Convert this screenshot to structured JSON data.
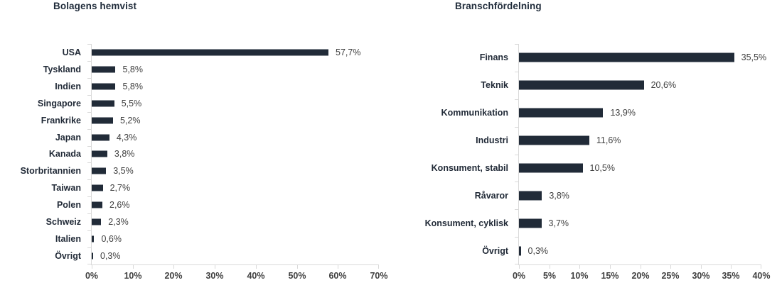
{
  "colors": {
    "bar": "#212b38",
    "title": "#1f2b3a",
    "category_label": "#222b38",
    "value_label": "#404040",
    "axis_line": "#d9d9d9",
    "tick_label": "#404040",
    "background": "#ffffff"
  },
  "chart_data": [
    {
      "type": "bar",
      "orientation": "horizontal",
      "title": "Bolagens hemvist",
      "categories": [
        "USA",
        "Tyskland",
        "Indien",
        "Singapore",
        "Frankrike",
        "Japan",
        "Kanada",
        "Storbritannien",
        "Taiwan",
        "Polen",
        "Schweiz",
        "Italien",
        "Övrigt"
      ],
      "values": [
        57.7,
        5.8,
        5.8,
        5.5,
        5.2,
        4.3,
        3.8,
        3.5,
        2.7,
        2.6,
        2.3,
        0.6,
        0.3
      ],
      "value_labels": [
        "57,7%",
        "5,8%",
        "5,8%",
        "5,5%",
        "5,2%",
        "4,3%",
        "3,8%",
        "3,5%",
        "2,7%",
        "2,6%",
        "2,3%",
        "0,6%",
        "0,3%"
      ],
      "xlim": [
        0,
        70
      ],
      "x_ticks": [
        "0%",
        "10%",
        "20%",
        "30%",
        "40%",
        "50%",
        "60%",
        "70%"
      ],
      "xlabel": "",
      "ylabel": "",
      "grid": false,
      "legend": false
    },
    {
      "type": "bar",
      "orientation": "horizontal",
      "title": "Branschfördelning",
      "categories": [
        "Finans",
        "Teknik",
        "Kommunikation",
        "Industri",
        "Konsument, stabil",
        "Råvaror",
        "Konsument, cyklisk",
        "Övrigt"
      ],
      "values": [
        35.5,
        20.6,
        13.9,
        11.6,
        10.5,
        3.8,
        3.7,
        0.3
      ],
      "value_labels": [
        "35,5%",
        "20,6%",
        "13,9%",
        "11,6%",
        "10,5%",
        "3,8%",
        "3,7%",
        "0,3%"
      ],
      "xlim": [
        0,
        40
      ],
      "x_ticks": [
        "0%",
        "5%",
        "10%",
        "15%",
        "20%",
        "25%",
        "30%",
        "35%",
        "40%"
      ],
      "xlabel": "",
      "ylabel": "",
      "grid": false,
      "legend": false
    }
  ]
}
